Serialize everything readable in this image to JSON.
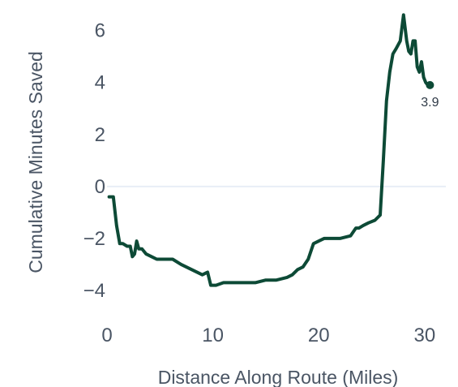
{
  "chart_data": {
    "type": "line",
    "title": "",
    "xlabel": "Distance Along Route (Miles)",
    "ylabel": "Cumulative Minutes Saved",
    "xlim": [
      0,
      32
    ],
    "ylim": [
      -5,
      6.8
    ],
    "x_ticks": [
      0,
      10,
      20,
      30
    ],
    "x_tick_labels": [
      "0",
      "10",
      "20",
      "30"
    ],
    "y_ticks": [
      6,
      4,
      2,
      0,
      -2,
      -4
    ],
    "y_tick_labels": [
      "6",
      "4",
      "2",
      "0",
      "−2",
      "−4"
    ],
    "grid": false,
    "zero_line": true,
    "line_color": "#0d4a36",
    "zero_line_color": "#e8eef6",
    "series": [
      {
        "x": [
          0.2,
          0.6,
          0.9,
          1.2,
          1.5,
          1.9,
          2.2,
          2.4,
          2.6,
          2.8,
          3.0,
          3.3,
          3.7,
          4.2,
          4.7,
          5.2,
          5.7,
          6.2,
          7.0,
          8.0,
          9.0,
          9.5,
          9.8,
          10.3,
          11.0,
          12.0,
          13.0,
          14.0,
          15.0,
          16.0,
          17.0,
          17.5,
          18.0,
          18.5,
          19.0,
          19.5,
          20.0,
          20.5,
          21.0,
          22.0,
          23.0,
          23.5,
          23.8,
          24.2,
          24.7,
          25.3,
          25.8,
          26.1,
          26.4,
          26.7,
          27.0,
          27.3,
          27.7,
          28.0,
          28.3,
          28.5,
          28.7,
          28.9,
          29.1,
          29.3,
          29.5,
          29.7,
          29.9,
          30.1,
          30.3,
          30.5
        ],
        "y": [
          -0.4,
          -0.4,
          -1.5,
          -2.2,
          -2.2,
          -2.3,
          -2.3,
          -2.7,
          -2.6,
          -2.1,
          -2.4,
          -2.4,
          -2.6,
          -2.7,
          -2.8,
          -2.8,
          -2.8,
          -2.8,
          -3.0,
          -3.2,
          -3.4,
          -3.3,
          -3.8,
          -3.8,
          -3.7,
          -3.7,
          -3.7,
          -3.7,
          -3.6,
          -3.6,
          -3.5,
          -3.4,
          -3.2,
          -3.1,
          -2.8,
          -2.2,
          -2.1,
          -2.0,
          -2.0,
          -2.0,
          -1.9,
          -1.6,
          -1.6,
          -1.5,
          -1.4,
          -1.3,
          -1.1,
          1.0,
          3.3,
          4.4,
          5.1,
          5.3,
          5.6,
          6.6,
          5.6,
          5.2,
          5.1,
          5.6,
          5.6,
          4.6,
          4.4,
          4.8,
          4.2,
          4.0,
          3.9,
          3.9
        ]
      }
    ],
    "end_label": "3.9"
  }
}
